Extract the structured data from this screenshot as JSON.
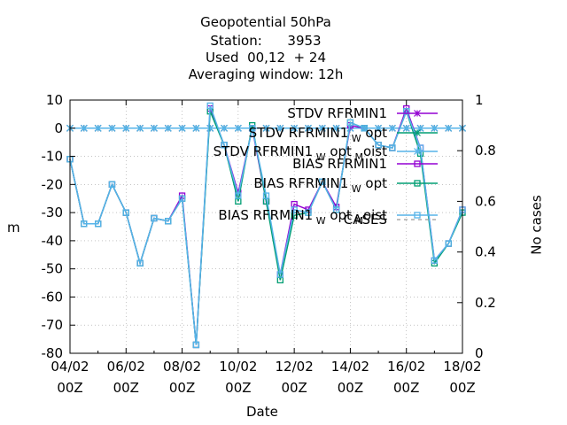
{
  "chart_data": {
    "type": "line",
    "title": [
      "Geopotential 50hPa",
      "Station:      3953",
      "Used  00,12  + 24",
      "Averaging window: 12h"
    ],
    "xlabel": "Date",
    "ylabel": "m",
    "y2label": "No cases",
    "ylim": [
      -80,
      10
    ],
    "y2lim": [
      0,
      1
    ],
    "xlim_days": [
      0,
      14
    ],
    "yticks": [
      "10",
      "0",
      "-10",
      "-20",
      "-30",
      "-40",
      "-50",
      "-60",
      "-70",
      "-80"
    ],
    "y2ticks": [
      "1",
      "0.8",
      "0.6",
      "0.4",
      "0.2",
      "0"
    ],
    "xticks": [
      {
        "day": 0,
        "top": "04/02",
        "bottom": "00Z"
      },
      {
        "day": 2,
        "top": "06/02",
        "bottom": "00Z"
      },
      {
        "day": 4,
        "top": "08/02",
        "bottom": "00Z"
      },
      {
        "day": 6,
        "top": "10/02",
        "bottom": "00Z"
      },
      {
        "day": 8,
        "top": "12/02",
        "bottom": "00Z"
      },
      {
        "day": 10,
        "top": "14/02",
        "bottom": "00Z"
      },
      {
        "day": 12,
        "top": "16/02",
        "bottom": "00Z"
      },
      {
        "day": 14,
        "top": "18/02",
        "bottom": "00Z"
      }
    ],
    "x_days": [
      0,
      0.5,
      1,
      1.5,
      2,
      2.5,
      3,
      3.5,
      4,
      4.5,
      5,
      5.5,
      6,
      6.5,
      7,
      7.5,
      8,
      8.5,
      9,
      9.5,
      10,
      10.5,
      11,
      11.5,
      12,
      12.5,
      13,
      13.5,
      14
    ],
    "grid": true,
    "legend_position": "top-right",
    "series": [
      {
        "name": "STDV RFRMIN1",
        "sub": "",
        "style": "line-x",
        "color": "#9400d3",
        "values": [
          0,
          0,
          0,
          0,
          0,
          0,
          0,
          0,
          0,
          0,
          0,
          0,
          0,
          0,
          0,
          0,
          0,
          0,
          0,
          0,
          0,
          0,
          0,
          0,
          0,
          0,
          0,
          0,
          0
        ]
      },
      {
        "name": "STDV RFRMIN1",
        "sub": "W",
        "tail": "opt",
        "style": "line-x",
        "color": "#009e73",
        "values": [
          0,
          0,
          0,
          0,
          0,
          0,
          0,
          0,
          0,
          0,
          0,
          0,
          0,
          0,
          0,
          0,
          0,
          0,
          0,
          0,
          0,
          0,
          0,
          0,
          0,
          0,
          0,
          0,
          0
        ]
      },
      {
        "name": "STDV RFRMIN1",
        "sub": "W",
        "tail": "opt",
        "sub2": "M",
        "tail2": "oist",
        "style": "line-x",
        "color": "#56b4e9",
        "values": [
          0,
          0,
          0,
          0,
          0,
          0,
          0,
          0,
          0,
          0,
          0,
          0,
          0,
          0,
          0,
          0,
          0,
          0,
          0,
          0,
          0,
          0,
          0,
          0,
          0,
          0,
          0,
          0,
          0
        ]
      },
      {
        "name": "BIAS RFRMIN1",
        "sub": "",
        "style": "line-square",
        "color": "#9400d3",
        "values": [
          -11,
          -34,
          -34,
          -20,
          -30,
          -48,
          -32,
          -33,
          -24,
          -77,
          7,
          -6,
          -23,
          0,
          -26,
          -52,
          -27,
          -29,
          -19,
          -28,
          1,
          0,
          -6,
          -7,
          7,
          -7,
          -47,
          -41,
          -29
        ]
      },
      {
        "name": "BIAS RFRMIN1",
        "sub": "W",
        "tail": "opt",
        "style": "line-square",
        "color": "#009e73",
        "values": [
          -11,
          -34,
          -34,
          -20,
          -30,
          -48,
          -32,
          -33,
          -25,
          -77,
          6,
          -6,
          -26,
          1,
          -26,
          -54,
          -31,
          -30,
          -19,
          -29,
          2,
          0,
          -6,
          -7,
          6,
          -9,
          -48,
          -41,
          -30
        ]
      },
      {
        "name": "BIAS RFRMIN1",
        "sub": "W",
        "tail": "opt",
        "sub2": "M",
        "tail2": "oist",
        "style": "line-square",
        "color": "#56b4e9",
        "values": [
          -11,
          -34,
          -34,
          -20,
          -30,
          -48,
          -32,
          -33,
          -25,
          -77,
          8,
          -6,
          -24,
          0,
          -24,
          -52,
          -29,
          -30,
          -19,
          -29,
          2,
          0,
          -6,
          -7,
          6,
          -7,
          -47,
          -41,
          -29
        ]
      },
      {
        "name": "CASES",
        "sub": "",
        "style": "dashed",
        "color": "#999999",
        "values": []
      }
    ]
  }
}
